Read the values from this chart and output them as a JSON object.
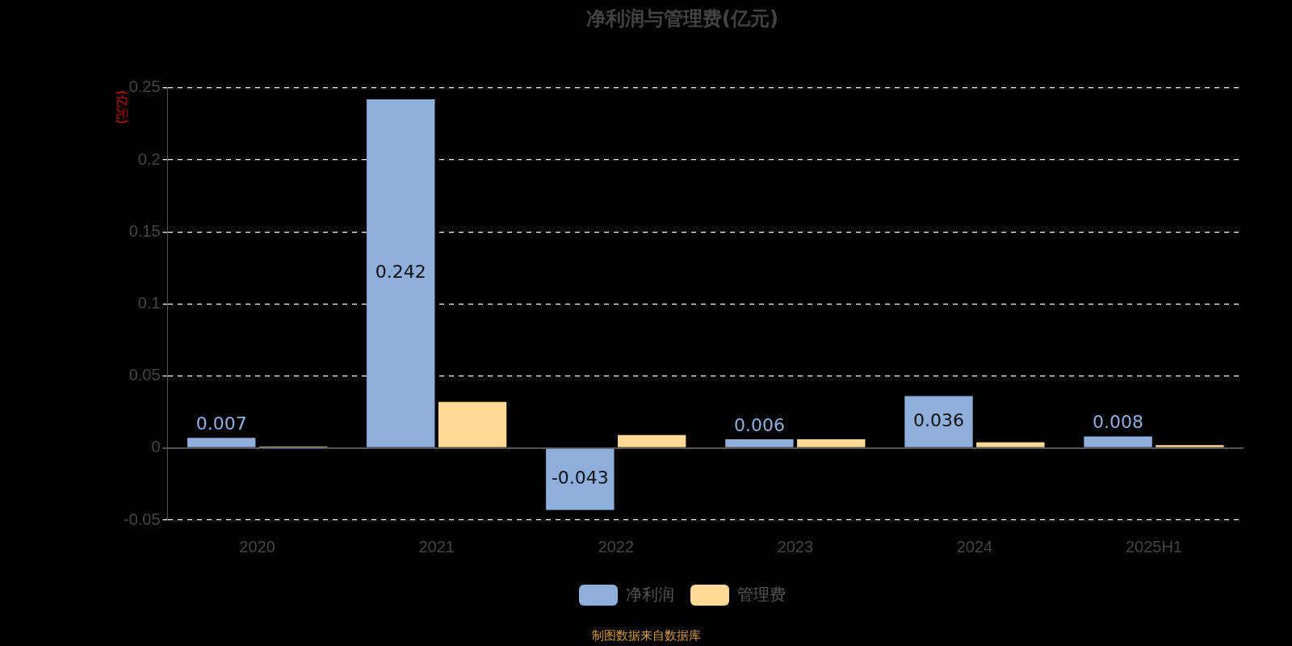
{
  "chart_data": {
    "type": "bar",
    "title": "净利润与管理费(亿元)",
    "ylabel": "(亿元)",
    "categories": [
      "2020",
      "2021",
      "2022",
      "2023",
      "2024",
      "2025H1"
    ],
    "series": [
      {
        "name": "净利润",
        "color": "#8eaedb",
        "values": [
          0.007,
          0.242,
          -0.043,
          0.006,
          0.036,
          0.008
        ],
        "value_labels": [
          "0.007",
          "0.242",
          "-0.043",
          "0.006",
          "0.036",
          "0.008"
        ]
      },
      {
        "name": "管理费",
        "color": "#ffd996",
        "values": [
          0.001,
          0.032,
          0.009,
          0.006,
          0.004,
          0.002
        ]
      }
    ],
    "ylim": [
      -0.05,
      0.25
    ],
    "yticks": [
      -0.05,
      0,
      0.05,
      0.1,
      0.15,
      0.2,
      0.25
    ],
    "grid": "y",
    "legend": "bottom",
    "annotations": [
      "制图数据来自数据库"
    ]
  }
}
